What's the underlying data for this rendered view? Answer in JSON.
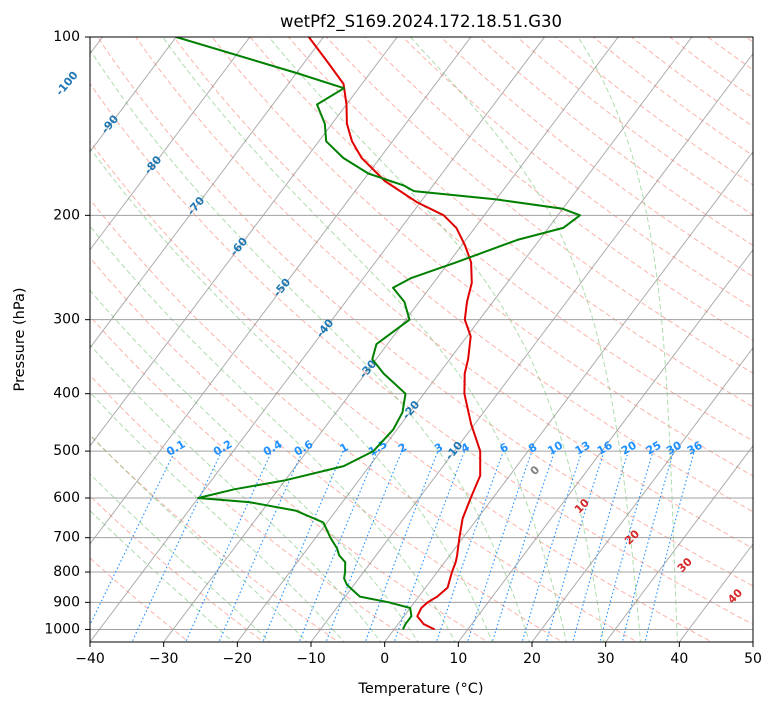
{
  "chart_data": {
    "type": "line",
    "subtype": "skew-T log-P diagram",
    "title": "wetPf2_S169.2024.172.18.51.G30",
    "xlabel": "Temperature (°C)",
    "ylabel": "Pressure (hPa)",
    "xlim": [
      -40,
      50
    ],
    "ylim": [
      1050,
      100
    ],
    "y_scale": "log",
    "x_ticks": [
      -40,
      -30,
      -20,
      -10,
      0,
      10,
      20,
      30,
      40,
      50
    ],
    "y_ticks": [
      100,
      200,
      300,
      400,
      500,
      600,
      700,
      800,
      900,
      1000
    ],
    "grid": true,
    "series": [
      {
        "color": "#e00000",
        "points": [
          [
            1000,
            5.5
          ],
          [
            980,
            3.5
          ],
          [
            950,
            1.8
          ],
          [
            920,
            1.5
          ],
          [
            900,
            1.8
          ],
          [
            880,
            2.5
          ],
          [
            850,
            3.0
          ],
          [
            830,
            2.6
          ],
          [
            800,
            2.0
          ],
          [
            770,
            1.5
          ],
          [
            750,
            1.0
          ],
          [
            700,
            -0.5
          ],
          [
            650,
            -2.0
          ],
          [
            600,
            -3.0
          ],
          [
            550,
            -4.0
          ],
          [
            500,
            -6.5
          ],
          [
            450,
            -10.5
          ],
          [
            400,
            -14.5
          ],
          [
            370,
            -16.5
          ],
          [
            350,
            -17.5
          ],
          [
            320,
            -19.5
          ],
          [
            300,
            -22.0
          ],
          [
            280,
            -23.5
          ],
          [
            260,
            -24.8
          ],
          [
            240,
            -27.0
          ],
          [
            225,
            -29.5
          ],
          [
            210,
            -32.5
          ],
          [
            200,
            -35.5
          ],
          [
            190,
            -40.5
          ],
          [
            175,
            -47.0
          ],
          [
            160,
            -52.5
          ],
          [
            150,
            -55.5
          ],
          [
            140,
            -58.0
          ],
          [
            130,
            -60.0
          ],
          [
            120,
            -62.5
          ],
          [
            110,
            -67.0
          ],
          [
            100,
            -72.0
          ]
        ]
      },
      {
        "color": "#008000",
        "points": [
          [
            1000,
            1.2
          ],
          [
            980,
            1.0
          ],
          [
            950,
            1.0
          ],
          [
            920,
            0.0
          ],
          [
            900,
            -3.5
          ],
          [
            880,
            -8.0
          ],
          [
            860,
            -9.5
          ],
          [
            840,
            -11.0
          ],
          [
            820,
            -12.0
          ],
          [
            800,
            -12.5
          ],
          [
            770,
            -13.5
          ],
          [
            750,
            -15.0
          ],
          [
            730,
            -16.0
          ],
          [
            700,
            -18.0
          ],
          [
            660,
            -20.5
          ],
          [
            630,
            -25.5
          ],
          [
            610,
            -32.5
          ],
          [
            600,
            -40.0
          ],
          [
            580,
            -36.0
          ],
          [
            560,
            -30.0
          ],
          [
            530,
            -23.5
          ],
          [
            500,
            -21.0
          ],
          [
            460,
            -20.5
          ],
          [
            430,
            -21.0
          ],
          [
            400,
            -22.5
          ],
          [
            370,
            -27.5
          ],
          [
            350,
            -30.5
          ],
          [
            330,
            -31.5
          ],
          [
            300,
            -29.5
          ],
          [
            280,
            -32.0
          ],
          [
            265,
            -35.0
          ],
          [
            255,
            -33.5
          ],
          [
            240,
            -29.0
          ],
          [
            220,
            -23.0
          ],
          [
            210,
            -18.0
          ],
          [
            200,
            -17.0
          ],
          [
            195,
            -20.0
          ],
          [
            188,
            -30.0
          ],
          [
            182,
            -42.0
          ],
          [
            178,
            -44.0
          ],
          [
            170,
            -50.0
          ],
          [
            160,
            -55.0
          ],
          [
            150,
            -59.0
          ],
          [
            140,
            -61.0
          ],
          [
            130,
            -64.0
          ],
          [
            122,
            -62.0
          ],
          [
            115,
            -70.0
          ],
          [
            100,
            -90.0
          ]
        ]
      }
    ],
    "isotherms": {
      "color": "#808080",
      "step": 10
    },
    "dry_adiabats": {
      "color": "#fa8072",
      "style": "dashed"
    },
    "moist_adiabats": {
      "color": "#6cbf6c",
      "style": "dashed"
    },
    "mixing_ratio_lines": {
      "color": "#1e90ff",
      "style": "dotted",
      "values": [
        "0.1",
        "0.2",
        "0.4",
        "0.6",
        "1",
        "1.5",
        "2",
        "3",
        "4",
        "6",
        "8",
        "10",
        "13",
        "16",
        "20",
        "25",
        "30",
        "36"
      ]
    },
    "isotherm_labels": {
      "color": "#1f77b4",
      "values": [
        "-100",
        "-90",
        "-80",
        "-70",
        "-60",
        "-50",
        "-40",
        "-30",
        "-20",
        "-10"
      ]
    },
    "lcl_labels": [
      {
        "text": "0",
        "color": "#808080"
      },
      {
        "text": "10",
        "color": "#d62728"
      },
      {
        "text": "20",
        "color": "#d62728"
      },
      {
        "text": "30",
        "color": "#d62728"
      },
      {
        "text": "40",
        "color": "#d62728"
      }
    ]
  }
}
